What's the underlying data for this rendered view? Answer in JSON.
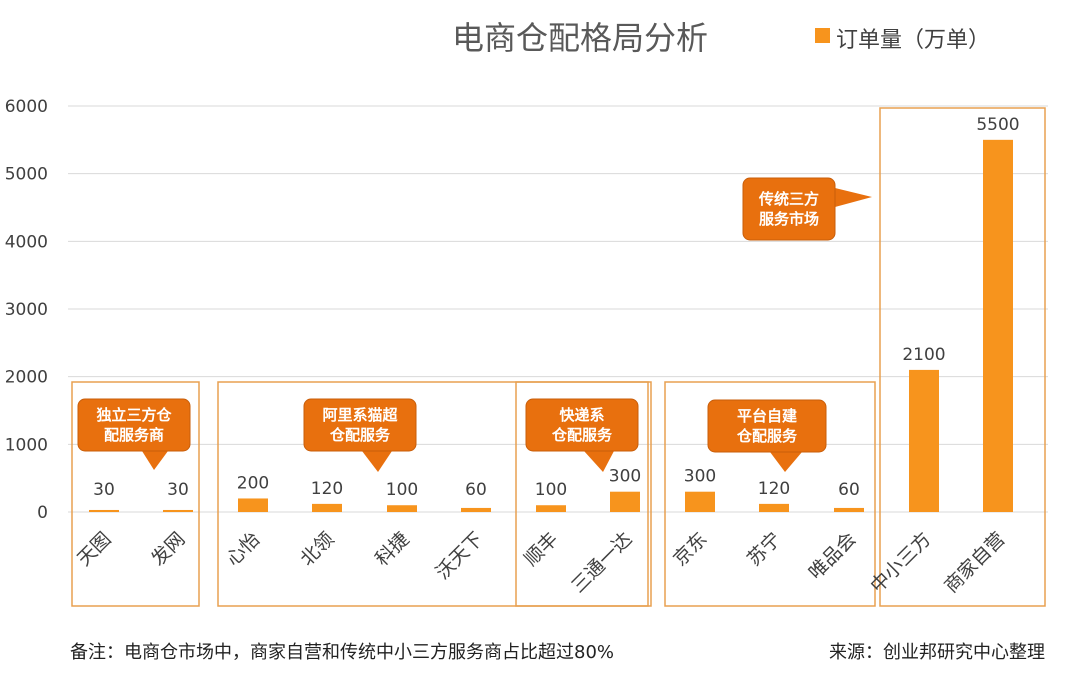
{
  "chart_data": {
    "type": "bar",
    "title": "电商仓配格局分析",
    "xlabel": "",
    "ylabel": "",
    "ylim": [
      0,
      6000
    ],
    "yticks": [
      0,
      1000,
      2000,
      3000,
      4000,
      5000,
      6000
    ],
    "grid": true,
    "legend_position": "top-right",
    "categories": [
      "天图",
      "发网",
      "心怡",
      "北领",
      "科捷",
      "沃天下",
      "顺丰",
      "三通一达",
      "京东",
      "苏宁",
      "唯品会",
      "中小三方",
      "商家自营"
    ],
    "series": [
      {
        "name": "订单量（万单）",
        "color": "#F7941D",
        "values": [
          30,
          30,
          200,
          120,
          100,
          60,
          100,
          300,
          300,
          120,
          60,
          2100,
          5500
        ]
      }
    ],
    "groups": [
      {
        "label_lines": [
          "独立三方仓",
          "配服务商"
        ],
        "categories": [
          "天图",
          "发网"
        ]
      },
      {
        "label_lines": [
          "阿里系猫超",
          "仓配服务"
        ],
        "categories": [
          "心怡",
          "北领",
          "科捷",
          "沃天下"
        ]
      },
      {
        "label_lines": [
          "快递系",
          "仓配服务"
        ],
        "categories": [
          "顺丰",
          "三通一达"
        ]
      },
      {
        "label_lines": [
          "平台自建",
          "仓配服务"
        ],
        "categories": [
          "京东",
          "苏宁",
          "唯品会"
        ]
      },
      {
        "label_lines": [
          "传统三方",
          "服务市场"
        ],
        "categories": [
          "中小三方",
          "商家自营"
        ]
      }
    ]
  },
  "colors": {
    "bar": "#F7941D",
    "callout": "#E8700E",
    "group_border": "#E8A050",
    "grid": "#D9D9D9"
  },
  "footer": {
    "note": "备注：电商仓市场中，商家自营和传统中小三方服务商占比超过80%",
    "source": "来源：创业邦研究中心整理"
  }
}
